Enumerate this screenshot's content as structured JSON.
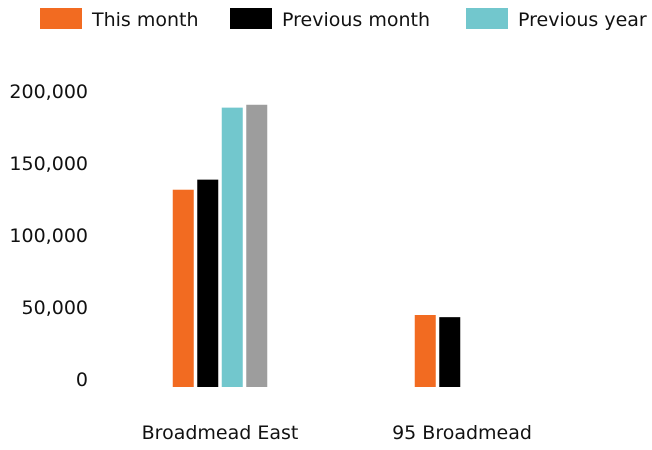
{
  "chart_data": {
    "type": "bar",
    "categories": [
      "Broadmead East",
      "95 Broadmead"
    ],
    "series": [
      {
        "name": "This month",
        "color": "#f26b21",
        "values": [
          137000,
          50000
        ]
      },
      {
        "name": "Previous month",
        "color": "#000000",
        "values": [
          144000,
          48500
        ]
      },
      {
        "name": "Previous year",
        "color": "#72c7cd",
        "values": [
          194000,
          null
        ]
      },
      {
        "name": null,
        "color": "#9d9d9d",
        "values": [
          196000,
          null
        ]
      }
    ],
    "ylim": [
      0,
      200000
    ],
    "yticks": [
      {
        "value": 0,
        "label": "0"
      },
      {
        "value": 50000,
        "label": "50,000"
      },
      {
        "value": 100000,
        "label": "100,000"
      },
      {
        "value": 150000,
        "label": "150,000"
      },
      {
        "value": 200000,
        "label": "200,000"
      }
    ],
    "grid": false,
    "legend": "top"
  }
}
